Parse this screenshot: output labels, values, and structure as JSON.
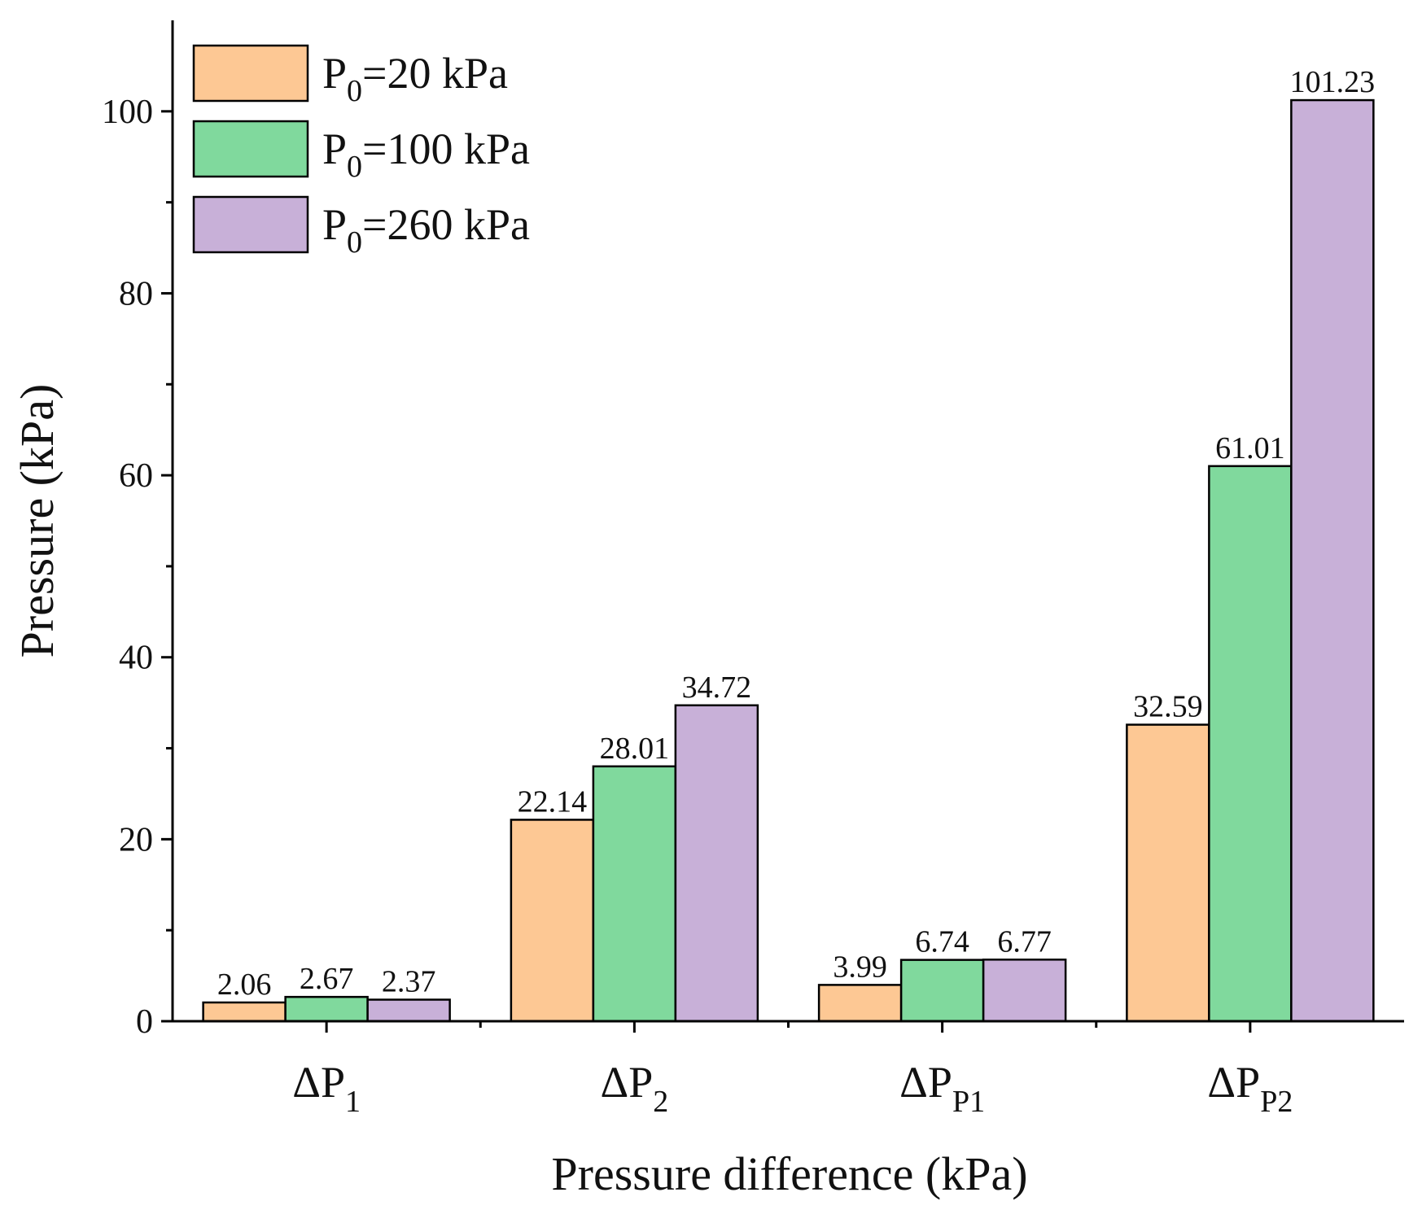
{
  "chart_data": {
    "type": "bar",
    "xlabel": "Pressure difference (kPa)",
    "ylabel": "Pressure (kPa)",
    "ylim": [
      0,
      110
    ],
    "yticks": [
      0,
      20,
      40,
      60,
      80,
      100
    ],
    "grid": false,
    "legend_position": "top-left",
    "categories": [
      {
        "main": "ΔP",
        "sub": "1"
      },
      {
        "main": "ΔP",
        "sub": "2"
      },
      {
        "main": "ΔP",
        "sub": "P1"
      },
      {
        "main": "ΔP",
        "sub": "P2"
      }
    ],
    "series": [
      {
        "label_main": "P",
        "label_sub": "0",
        "label_rest": "=20 kPa",
        "color": "#FDC894",
        "values": [
          2.06,
          22.14,
          3.99,
          32.59
        ],
        "labels": [
          "2.06",
          "22.14",
          "3.99",
          "32.59"
        ]
      },
      {
        "label_main": "P",
        "label_sub": "0",
        "label_rest": "=100 kPa",
        "color": "#80D99D",
        "values": [
          2.67,
          28.01,
          6.74,
          61.01
        ],
        "labels": [
          "2.67",
          "28.01",
          "6.74",
          "61.01"
        ]
      },
      {
        "label_main": "P",
        "label_sub": "0",
        "label_rest": "=260 kPa",
        "color": "#C8B0D8",
        "values": [
          2.37,
          34.72,
          6.77,
          101.23
        ],
        "labels": [
          "2.37",
          "34.72",
          "6.77",
          "101.23"
        ]
      }
    ]
  }
}
